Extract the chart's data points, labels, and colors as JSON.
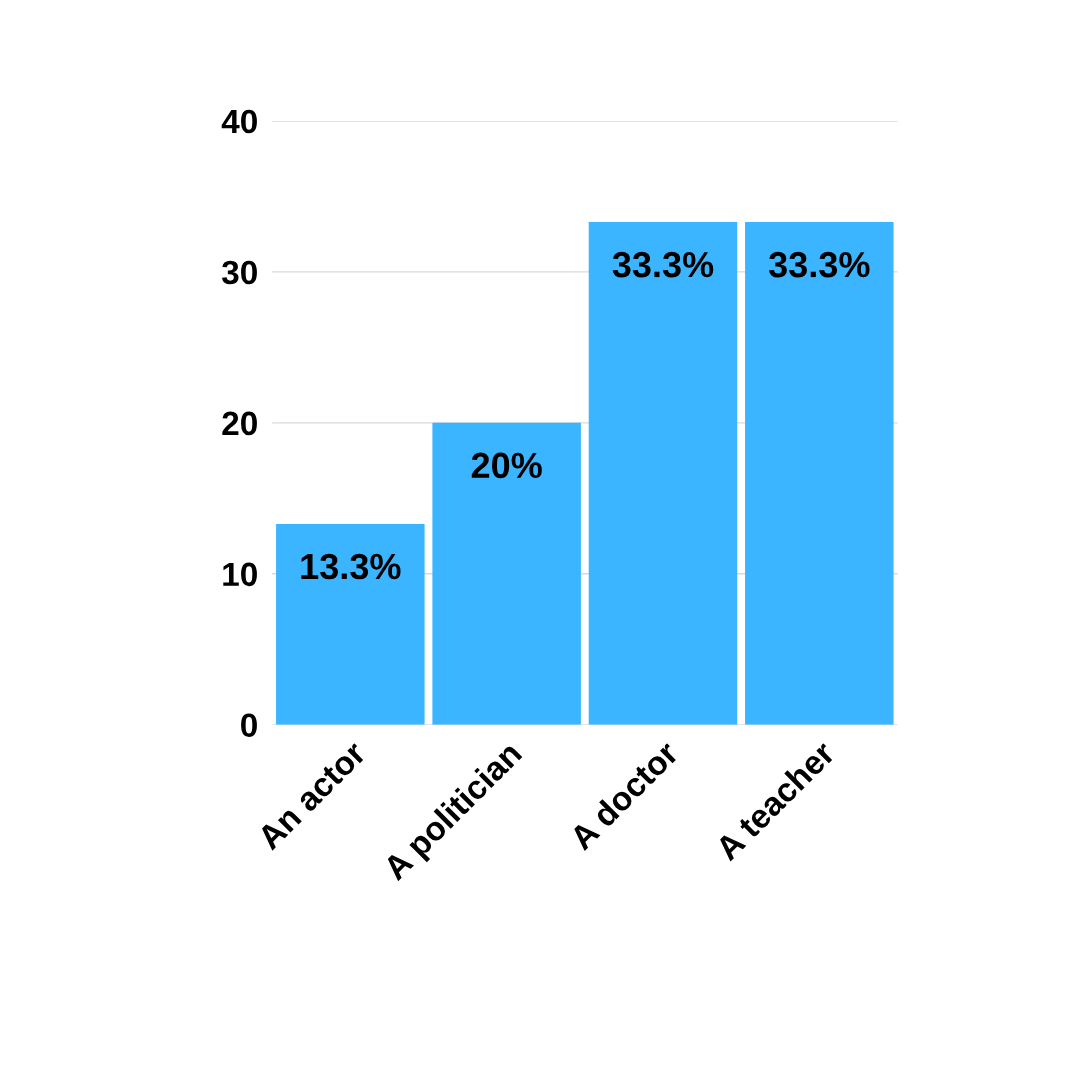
{
  "chart_data": {
    "type": "bar",
    "categories": [
      "An actor",
      "A politician",
      "A doctor",
      "A teacher"
    ],
    "values": [
      13.3,
      20,
      33.3,
      33.3
    ],
    "value_labels": [
      "13.3%",
      "20%",
      "33.3%",
      "33.3%"
    ],
    "color": "#3bb5ff",
    "ylim": [
      0,
      40
    ],
    "yticks": [
      0,
      10,
      20,
      30,
      40
    ],
    "grid": "y"
  }
}
